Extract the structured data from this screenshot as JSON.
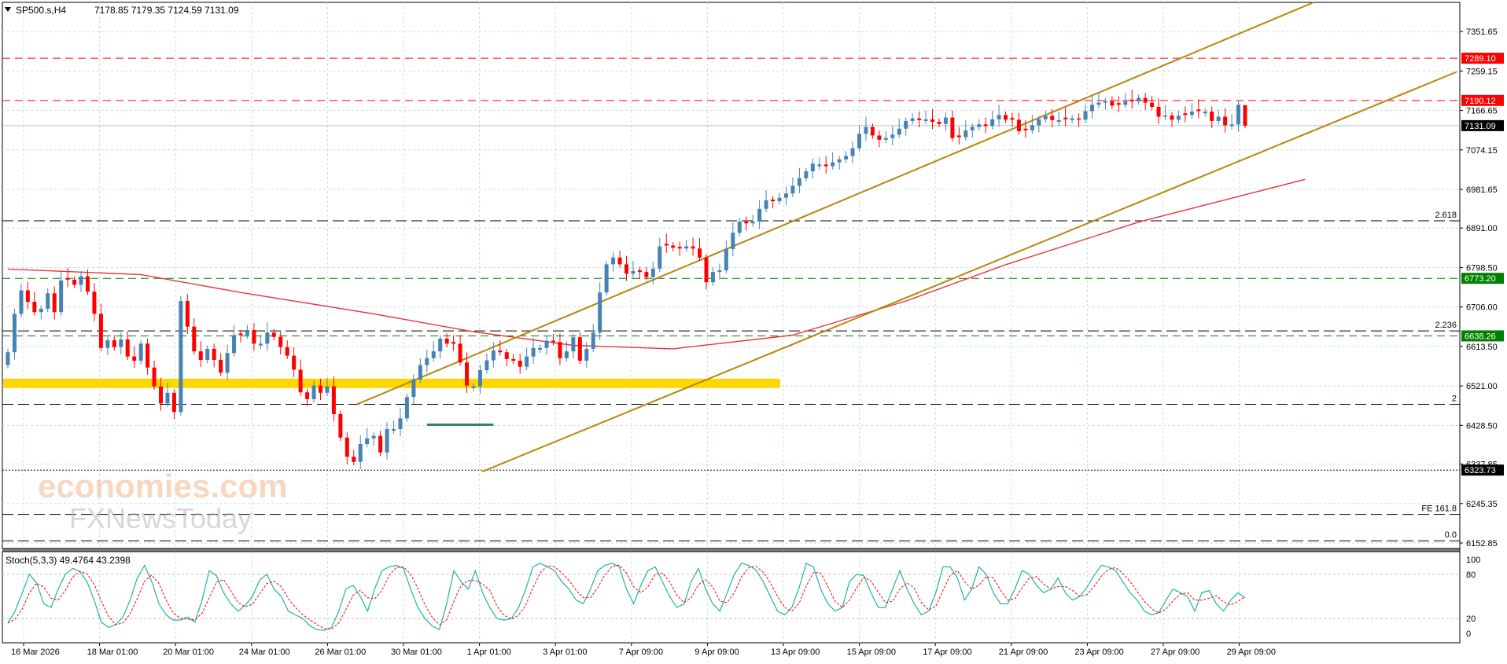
{
  "header": {
    "symbol": "SP500.s,H4",
    "ohlc": "7178.85 7179.35 7124.59 7131.09",
    "dropdown_icon": "triangle-down-icon"
  },
  "indicator": {
    "label": "Stoch(5,3,3) 49.4764 43.2398",
    "ticks": [
      "100",
      "80",
      "20",
      "0"
    ],
    "main_color": "#20b2aa",
    "signal_color": "#ff0000"
  },
  "price_axis": {
    "ticks": [
      "7351.65",
      "7259.15",
      "7166.65",
      "7074.15",
      "6981.65",
      "6891.00",
      "6798.50",
      "6706.00",
      "6613.50",
      "6521.00",
      "6428.50",
      "6337.85",
      "6245.35",
      "6152.85"
    ]
  },
  "time_axis": {
    "labels": [
      "16 Mar 2026",
      "18 Mar 01:00",
      "20 Mar 01:00",
      "24 Mar 01:00",
      "26 Mar 01:00",
      "30 Mar 01:00",
      "1 Apr 01:00",
      "3 Apr 01:00",
      "7 Apr 09:00",
      "9 Apr 09:00",
      "13 Apr 09:00",
      "15 Apr 09:00",
      "17 Apr 09:00",
      "21 Apr 09:00",
      "23 Apr 09:00",
      "27 Apr 09:00",
      "29 Apr 09:00"
    ]
  },
  "levels": [
    {
      "price": 7289.1,
      "tag": "7289.10",
      "style": "red-dash",
      "tag_bg": "#ff0000"
    },
    {
      "price": 7190.12,
      "tag": "7190.12",
      "style": "red-dash",
      "tag_bg": "#ff0000"
    },
    {
      "price": 7131.09,
      "tag": "7131.09",
      "style": "current",
      "tag_bg": "#000000"
    },
    {
      "price": 6773.2,
      "tag": "6773.20",
      "style": "green-dash",
      "tag_bg": "#008000"
    },
    {
      "price": 6638.26,
      "tag": "6638.26",
      "style": "green-dash",
      "tag_bg": "#008000"
    },
    {
      "price": 6323.73,
      "tag": "6323.73",
      "style": "black-dot",
      "tag_bg": "#000000"
    }
  ],
  "fib_levels": [
    {
      "price": 6908.0,
      "label": "2.618"
    },
    {
      "price": 6650.0,
      "label": "2.236"
    },
    {
      "price": 6478.0,
      "label": "2"
    },
    {
      "price": 6220.0,
      "label": "FE 161.8"
    },
    {
      "price": 6158.0,
      "label": "0.0"
    }
  ],
  "watermark": {
    "line1": "economies.com",
    "line2": "FXNewsToday"
  },
  "colors": {
    "bull": "#4682b4",
    "bear": "#ff0000",
    "channel": "#b8860b",
    "ma": "#e8353a",
    "support_band": "#ffd700",
    "green_line": "#2e8b57",
    "grid": "#c4e0e0"
  },
  "chart_data": {
    "type": "candlestick",
    "symbol": "SP500.s",
    "timeframe": "H4",
    "ylim": [
      6140,
      7420
    ],
    "ohlc_last": {
      "open": 7178.85,
      "high": 7179.35,
      "low": 7124.59,
      "close": 7131.09
    },
    "closes": [
      6600,
      6690,
      6745,
      6718,
      6694,
      6702,
      6738,
      6694,
      6768,
      6770,
      6758,
      6778,
      6742,
      6690,
      6610,
      6628,
      6612,
      6630,
      6590,
      6580,
      6620,
      6564,
      6520,
      6480,
      6505,
      6460,
      6720,
      6660,
      6602,
      6582,
      6608,
      6582,
      6552,
      6598,
      6640,
      6640,
      6652,
      6620,
      6620,
      6646,
      6636,
      6612,
      6592,
      6559,
      6506,
      6490,
      6522,
      6505,
      6520,
      6455,
      6400,
      6355,
      6343,
      6385,
      6398,
      6404,
      6365,
      6420,
      6420,
      6445,
      6495,
      6536,
      6570,
      6586,
      6602,
      6632,
      6620,
      6620,
      6576,
      6522,
      6520,
      6558,
      6581,
      6604,
      6600,
      6584,
      6580,
      6566,
      6590,
      6610,
      6610,
      6627,
      6624,
      6586,
      6602,
      6635,
      6580,
      6608,
      6646,
      6740,
      6806,
      6822,
      6806,
      6784,
      6790,
      6788,
      6776,
      6796,
      6848,
      6850,
      6845,
      6843,
      6848,
      6843,
      6822,
      6764,
      6788,
      6792,
      6842,
      6880,
      6906,
      6902,
      6906,
      6936,
      6956,
      6954,
      6962,
      6972,
      6990,
      7008,
      7024,
      7042,
      7040,
      7036,
      7045,
      7052,
      7060,
      7078,
      7112,
      7128,
      7108,
      7098,
      7102,
      7110,
      7124,
      7142,
      7148,
      7144,
      7146,
      7140,
      7135,
      7150,
      7102,
      7104,
      7120,
      7128,
      7134,
      7130,
      7146,
      7156,
      7145,
      7145,
      7118,
      7120,
      7132,
      7146,
      7154,
      7144,
      7144,
      7146,
      7148,
      7145,
      7165,
      7180,
      7185,
      7188,
      7178,
      7180,
      7188,
      7188,
      7196,
      7185,
      7175,
      7152,
      7155,
      7145,
      7154,
      7156,
      7164,
      7165,
      7164,
      7142,
      7152,
      7132,
      7134,
      7180,
      7131.09
    ],
    "ma": [
      {
        "x": 0,
        "y": 6795
      },
      {
        "x": 20,
        "y": 6782
      },
      {
        "x": 35,
        "y": 6740
      },
      {
        "x": 55,
        "y": 6690
      },
      {
        "x": 70,
        "y": 6648
      },
      {
        "x": 85,
        "y": 6616
      },
      {
        "x": 100,
        "y": 6608
      },
      {
        "x": 118,
        "y": 6640
      },
      {
        "x": 135,
        "y": 6720
      },
      {
        "x": 150,
        "y": 6805
      },
      {
        "x": 170,
        "y": 6905
      },
      {
        "x": 195,
        "y": 7005
      }
    ],
    "channel": {
      "upper": [
        {
          "x": 52.5,
          "y": 6478
        },
        {
          "x": 196.3,
          "y": 7420
        }
      ],
      "lower": [
        {
          "x": 71.3,
          "y": 6320
        },
        {
          "x": 217.8,
          "y": 7257
        }
      ]
    },
    "support_band": [
      6516,
      6538
    ],
    "horizontal_segment": {
      "x_from": 63,
      "x_to": 73,
      "y": 6430
    },
    "stochastic": {
      "k": 49.4764,
      "d": 43.2398,
      "main": [
        14,
        30,
        55,
        80,
        68,
        40,
        35,
        60,
        80,
        88,
        84,
        70,
        45,
        15,
        8,
        12,
        22,
        45,
        75,
        92,
        70,
        40,
        25,
        18,
        18,
        22,
        15,
        45,
        85,
        78,
        55,
        40,
        30,
        38,
        50,
        72,
        80,
        60,
        50,
        30,
        25,
        20,
        10,
        5,
        4,
        8,
        30,
        60,
        65,
        50,
        30,
        60,
        85,
        90,
        92,
        88,
        60,
        35,
        20,
        10,
        5,
        40,
        85,
        70,
        60,
        85,
        55,
        35,
        20,
        18,
        20,
        35,
        60,
        90,
        95,
        90,
        85,
        70,
        60,
        45,
        40,
        60,
        85,
        92,
        95,
        90,
        60,
        40,
        65,
        85,
        90,
        70,
        50,
        35,
        40,
        70,
        88,
        60,
        40,
        30,
        55,
        80,
        95,
        92,
        86,
        70,
        50,
        30,
        25,
        35,
        62,
        95,
        90,
        60,
        40,
        30,
        35,
        70,
        80,
        78,
        55,
        35,
        35,
        60,
        85,
        60,
        40,
        25,
        30,
        55,
        90,
        90,
        75,
        45,
        60,
        90,
        80,
        55,
        40,
        40,
        60,
        85,
        80,
        65,
        55,
        60,
        75,
        55,
        45,
        50,
        62,
        78,
        92,
        90,
        85,
        70,
        55,
        45,
        30,
        25,
        28,
        45,
        60,
        55,
        50,
        30,
        55,
        58,
        40,
        30,
        45,
        55,
        48
      ]
    },
    "x_labels": [
      "16 Mar 2026",
      "18 Mar 01:00",
      "20 Mar 01:00",
      "24 Mar 01:00",
      "26 Mar 01:00",
      "30 Mar 01:00",
      "1 Apr 01:00",
      "3 Apr 01:00",
      "7 Apr 09:00",
      "9 Apr 09:00",
      "13 Apr 09:00",
      "15 Apr 09:00",
      "17 Apr 09:00",
      "21 Apr 09:00",
      "23 Apr 09:00",
      "27 Apr 09:00",
      "29 Apr 09:00"
    ],
    "y_ticks": [
      7351.65,
      7259.15,
      7166.65,
      7074.15,
      6981.65,
      6891.0,
      6798.5,
      6706.0,
      6613.5,
      6521.0,
      6428.5,
      6337.85,
      6245.35,
      6152.85
    ]
  }
}
